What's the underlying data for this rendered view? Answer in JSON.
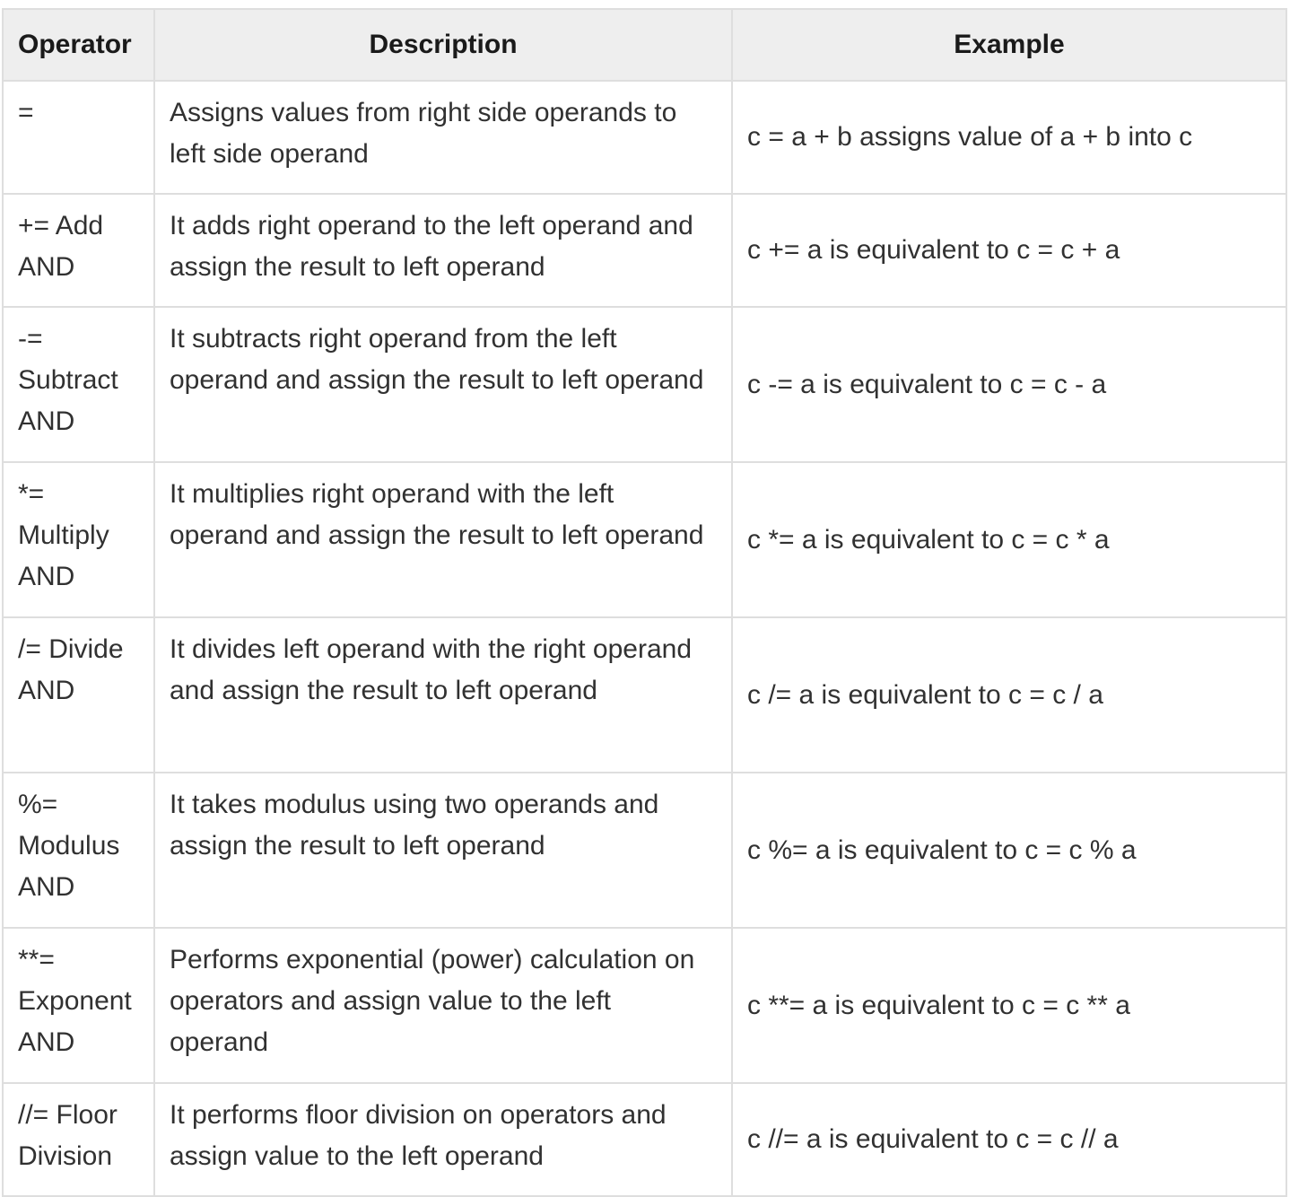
{
  "table": {
    "headers": {
      "operator": "Operator",
      "description": "Description",
      "example": "Example"
    },
    "rows": [
      {
        "operator": "=",
        "description": "Assigns values from right side operands to left side operand",
        "example": "c = a + b assigns value of a + b into c"
      },
      {
        "operator": "+= Add AND",
        "description": "It adds right operand to the left operand and assign the result to left operand",
        "example": "c += a is equivalent to c = c + a"
      },
      {
        "operator": "-= Subtract AND",
        "description": "It subtracts right operand from the left operand and assign the result to left operand",
        "example": "c -= a is equivalent to c = c - a"
      },
      {
        "operator": "*= Multiply AND",
        "description": "It multiplies right operand with the left operand and assign the result to left operand",
        "example": "c *= a is equivalent to c = c * a"
      },
      {
        "operator": "/= Divide AND",
        "description": "It divides left operand with the right operand and assign the result to left operand",
        "example": "c /= a is equivalent to c = c / a"
      },
      {
        "operator": "%= Modulus AND",
        "description": "It takes modulus using two operands and assign the result to left operand",
        "example": "c %= a is equivalent to c = c % a"
      },
      {
        "operator": "**= Exponent AND",
        "description": "Performs exponential (power) calculation on operators and assign value to the left operand",
        "example": "c **= a is equivalent to c = c ** a"
      },
      {
        "operator": "//= Floor Division",
        "description": "It performs floor division on operators and assign value to the left operand",
        "example": "c //= a is equivalent to c = c // a"
      }
    ]
  }
}
